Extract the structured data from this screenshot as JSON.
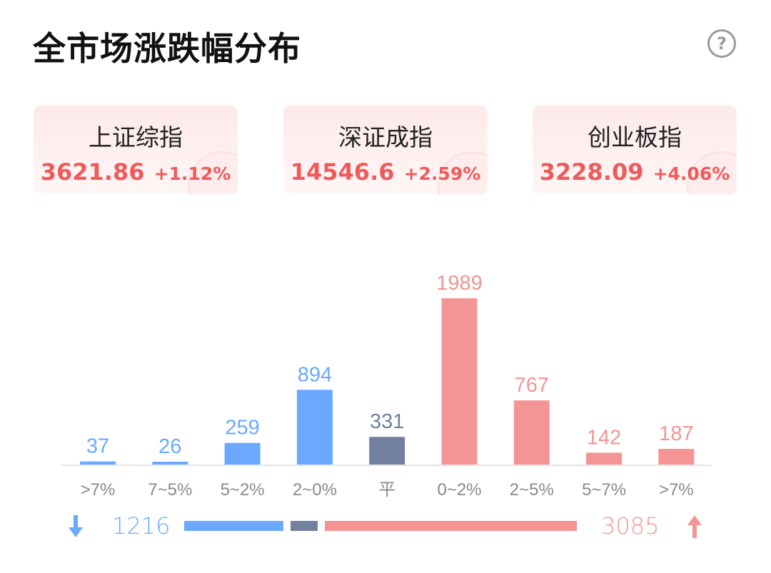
{
  "title": "全市场涨跌幅分布",
  "help_icon": "question-circle-icon",
  "indices": [
    {
      "name": "上证综指",
      "value": "3621.86",
      "change": "+1.12%"
    },
    {
      "name": "深证成指",
      "value": "14546.6",
      "change": "+2.59%"
    },
    {
      "name": "创业板指",
      "value": "3228.09",
      "change": "+4.06%"
    }
  ],
  "colors": {
    "down": "#6aa9ff",
    "flat": "#72809f",
    "up": "#f59494",
    "label": "#8a8a8a"
  },
  "chart_data": {
    "type": "bar",
    "title": "",
    "xlabel": "",
    "ylabel": "",
    "categories": [
      ">7%",
      "7~5%",
      "5~2%",
      "2~0%",
      "平",
      "0~2%",
      "2~5%",
      "5~7%",
      ">7%"
    ],
    "values": [
      37,
      26,
      259,
      894,
      331,
      1989,
      767,
      142,
      187
    ],
    "groups": [
      "down",
      "down",
      "down",
      "down",
      "flat",
      "up",
      "up",
      "up",
      "up"
    ],
    "grid": false
  },
  "summary": {
    "down_count": "1216",
    "up_count": "3085",
    "down_icon": "arrow-down-icon",
    "up_icon": "arrow-up-icon",
    "flat_count": 331
  }
}
